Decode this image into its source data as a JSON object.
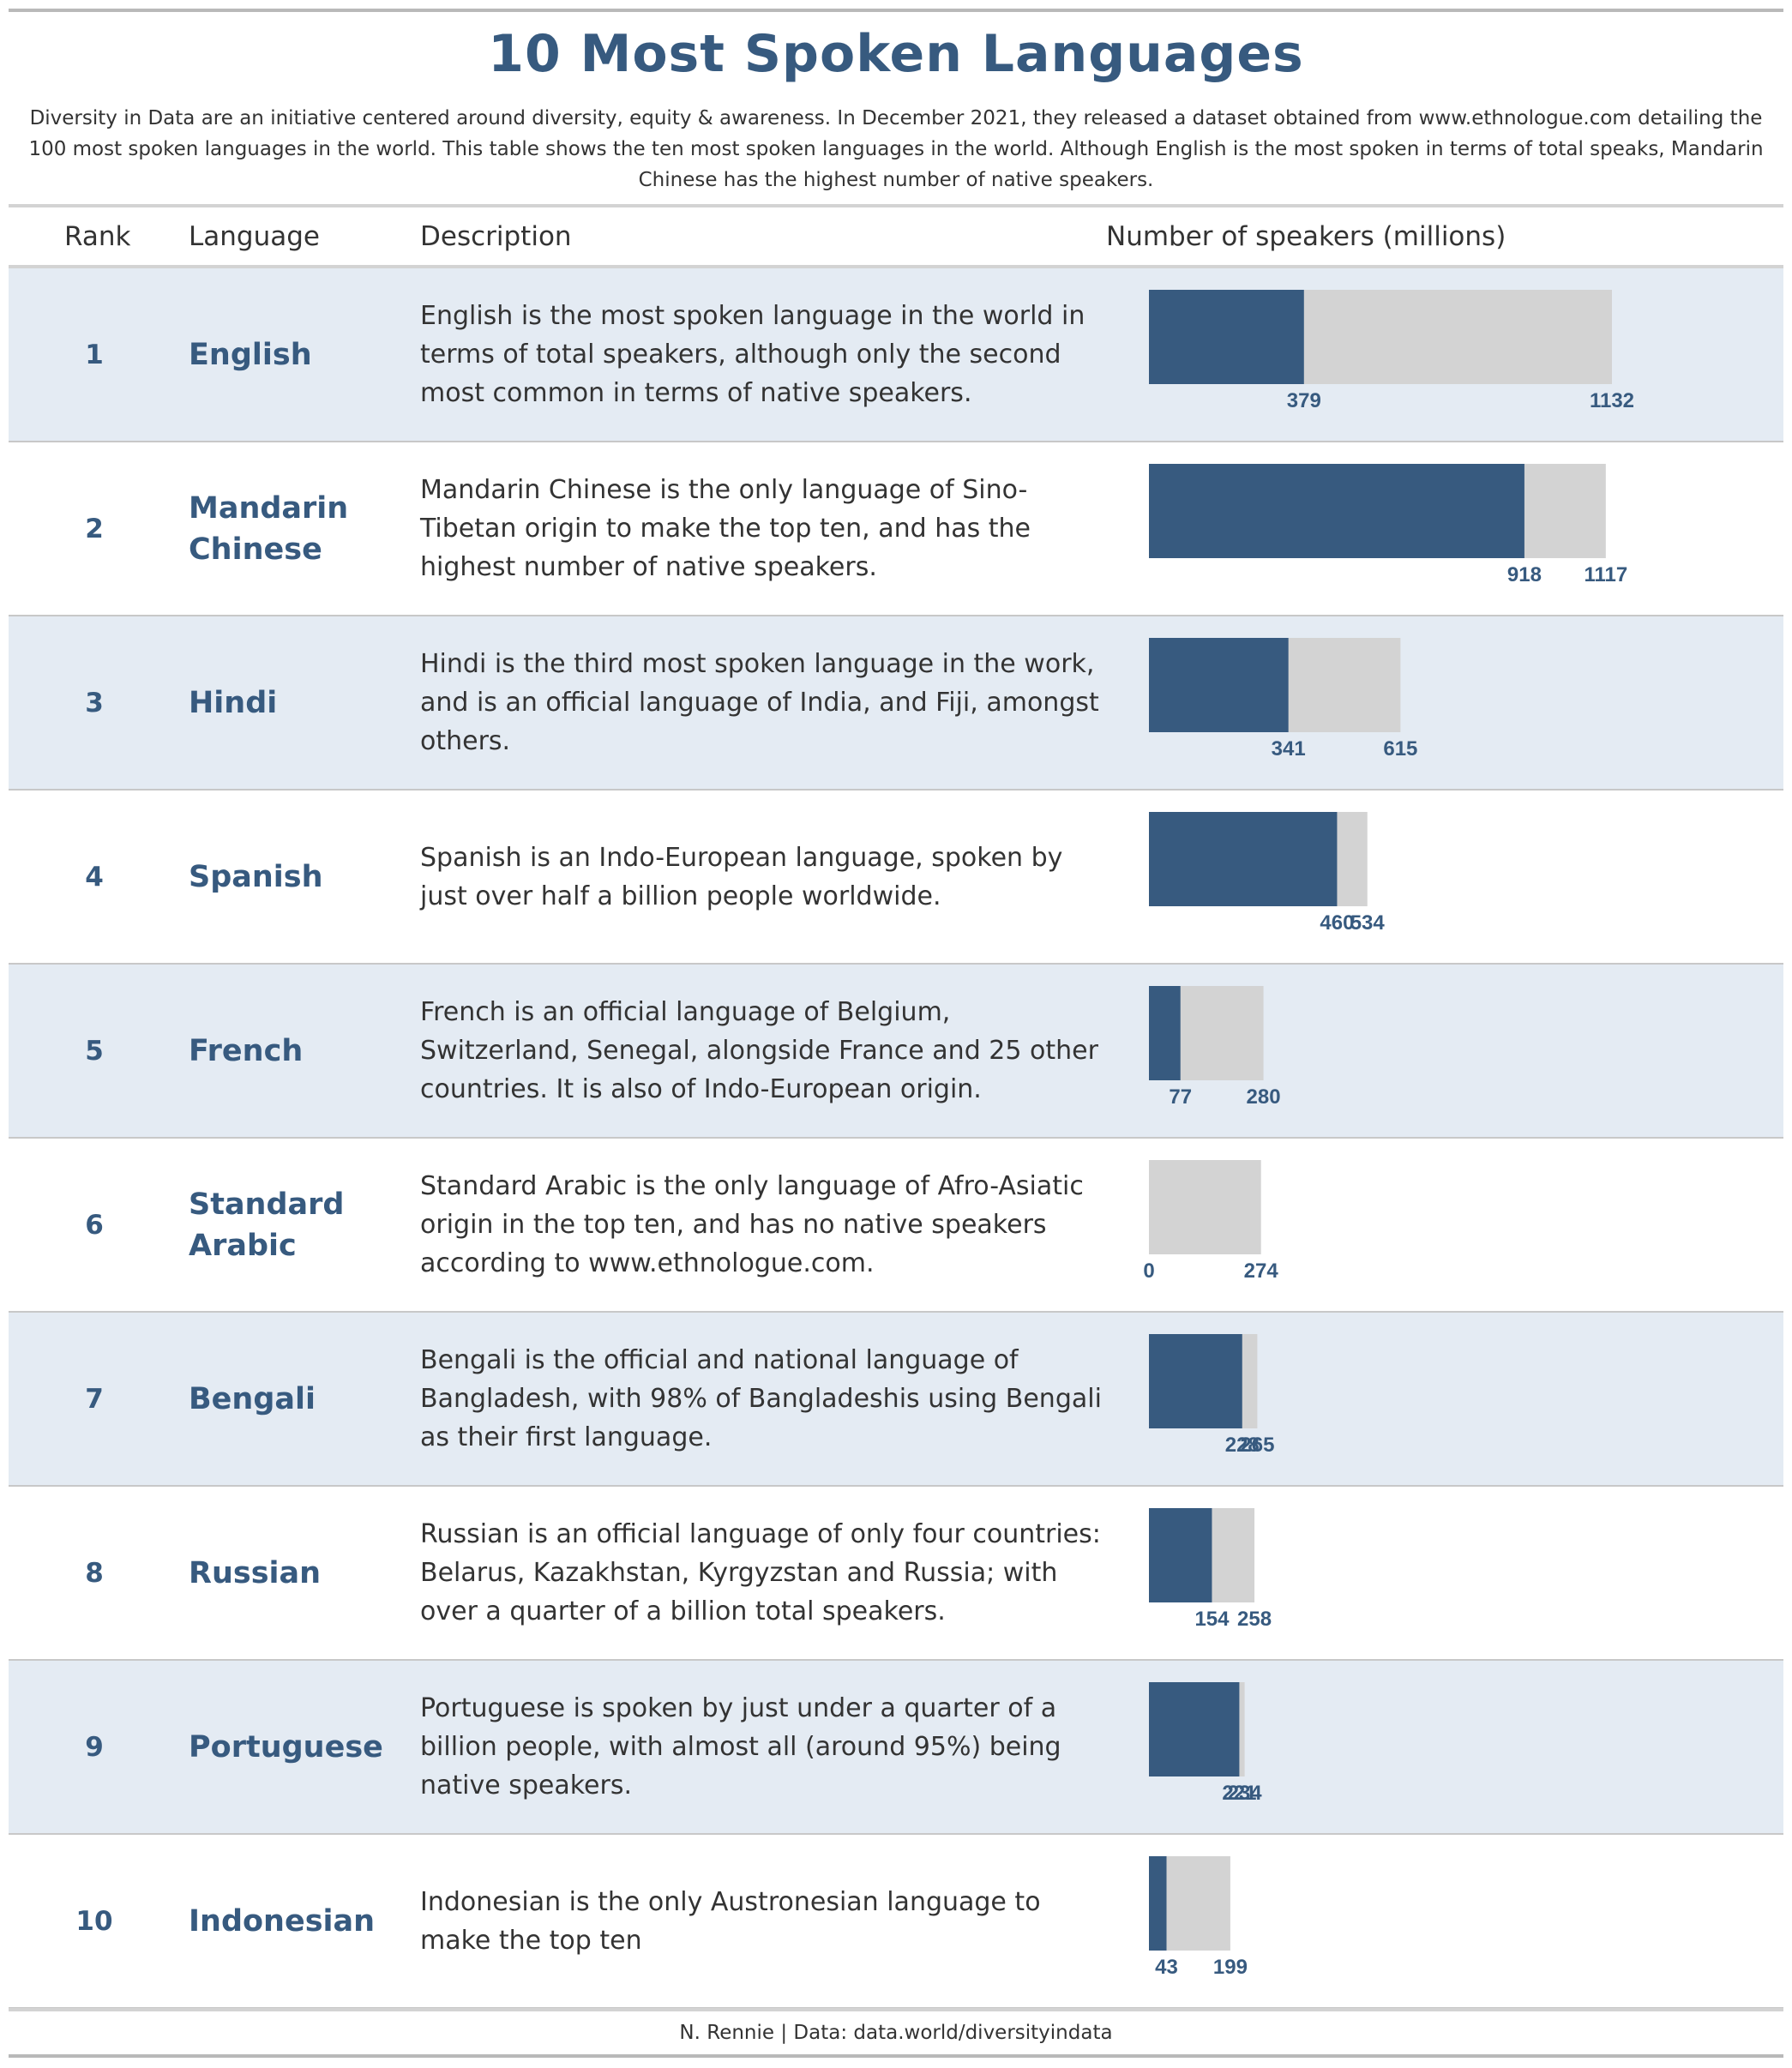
{
  "title": "10 Most Spoken Languages",
  "subtitle": "Diversity in Data are an initiative centered around diversity, equity & awareness. In December 2021, they released a dataset obtained from www.ethnologue.com detailing the 100 most spoken languages in the world. This table shows the ten most spoken languages in the world. Although English is the most spoken in terms of total speaks, Mandarin Chinese has the highest number of native speakers.",
  "columns": {
    "rank": "Rank",
    "language": "Language",
    "description": "Description",
    "speakers": "Number of speakers (millions)"
  },
  "caption": "N. Rennie | Data: data.world/diversityindata",
  "colors": {
    "native": "#375a7f",
    "total": "#d3d3d3",
    "shade": "#e4ebf3"
  },
  "rows": [
    {
      "rank": "1",
      "language": "English",
      "description": "English is the most spoken language in the world in terms of total speakers, although only the second most common in terms of native speakers."
    },
    {
      "rank": "2",
      "language": "Mandarin Chinese",
      "description": "Mandarin Chinese is the only language of Sino-Tibetan origin to make the top ten, and has the highest number of native speakers."
    },
    {
      "rank": "3",
      "language": "Hindi",
      "description": "Hindi is the third most spoken language in the work, and is an official language of India, and Fiji, amongst others."
    },
    {
      "rank": "4",
      "language": "Spanish",
      "description": "Spanish is an Indo-European language, spoken by just over half a billion people worldwide."
    },
    {
      "rank": "5",
      "language": "French",
      "description": "French is an official language of Belgium, Switzerland, Senegal, alongside France and 25 other countries. It is also of Indo-European origin."
    },
    {
      "rank": "6",
      "language": "Standard Arabic",
      "description": "Standard Arabic is the only language of Afro-Asiatic origin in the top ten, and has no native speakers according to www.ethnologue.com."
    },
    {
      "rank": "7",
      "language": "Bengali",
      "description": "Bengali is the official and national language of Bangladesh, with 98% of Bangladeshis using Bengali as their first language."
    },
    {
      "rank": "8",
      "language": "Russian",
      "description": "Russian is an official language of only four countries: Belarus, Kazakhstan, Kyrgyzstan and Russia; with over a quarter of a billion total speakers."
    },
    {
      "rank": "9",
      "language": "Portuguese",
      "description": "Portuguese is spoken by just under a quarter of a billion people, with almost all (around 95%) being native speakers."
    },
    {
      "rank": "10",
      "language": "Indonesian",
      "description": "Indonesian is the only Austronesian language to make the top ten"
    }
  ],
  "chart_data": {
    "type": "bar",
    "orientation": "horizontal",
    "categories": [
      "English",
      "Mandarin Chinese",
      "Hindi",
      "Spanish",
      "French",
      "Standard Arabic",
      "Bengali",
      "Russian",
      "Portuguese",
      "Indonesian"
    ],
    "series": [
      {
        "values": [
          379,
          918,
          341,
          460,
          77,
          0,
          228,
          154,
          221,
          43
        ]
      },
      {
        "values": [
          1132,
          1117,
          615,
          534,
          280,
          274,
          265,
          258,
          234,
          199
        ]
      }
    ],
    "xlim": [
      0,
      1132
    ],
    "title": "",
    "xlabel": "Number of speakers (millions)",
    "ylabel": "",
    "grid": false
  }
}
